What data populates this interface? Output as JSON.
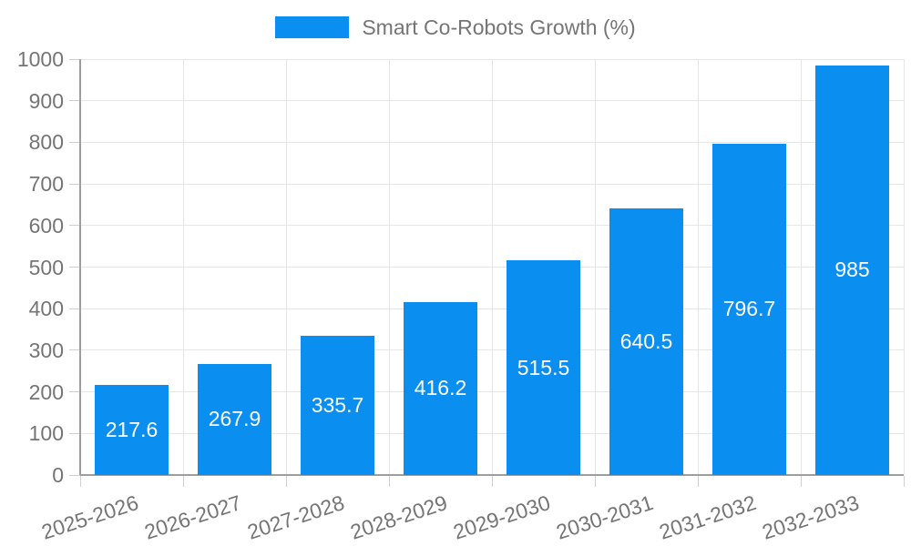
{
  "legend": {
    "label": "Smart Co-Robots Growth (%)"
  },
  "colors": {
    "bar": "#0a8ef0",
    "grid": "#e6e6e6",
    "tick": "#cfcfcf",
    "axis": "#9e9e9e",
    "tick_label": "#757575",
    "value_label": "#ffffff",
    "background": "#ffffff"
  },
  "chart_data": {
    "type": "bar",
    "title": "",
    "xlabel": "",
    "ylabel": "",
    "categories": [
      "2025-2026",
      "2026-2027",
      "2027-2028",
      "2028-2029",
      "2029-2030",
      "2030-2031",
      "2031-2032",
      "2032-2033"
    ],
    "series": [
      {
        "name": "Smart Co-Robots Growth (%)",
        "values": [
          217.6,
          267.9,
          335.7,
          416.2,
          515.5,
          640.5,
          796.7,
          985
        ]
      }
    ],
    "value_labels": [
      "217.6",
      "267.9",
      "335.7",
      "416.2",
      "515.5",
      "640.5",
      "796.7",
      "985"
    ],
    "value_label_position": "inside-center",
    "ylim": [
      0,
      1000
    ],
    "ytick_step": 100,
    "yticks": [
      "0",
      "100",
      "200",
      "300",
      "400",
      "500",
      "600",
      "700",
      "800",
      "900",
      "1000"
    ],
    "grid": true,
    "legend_position": "top"
  }
}
